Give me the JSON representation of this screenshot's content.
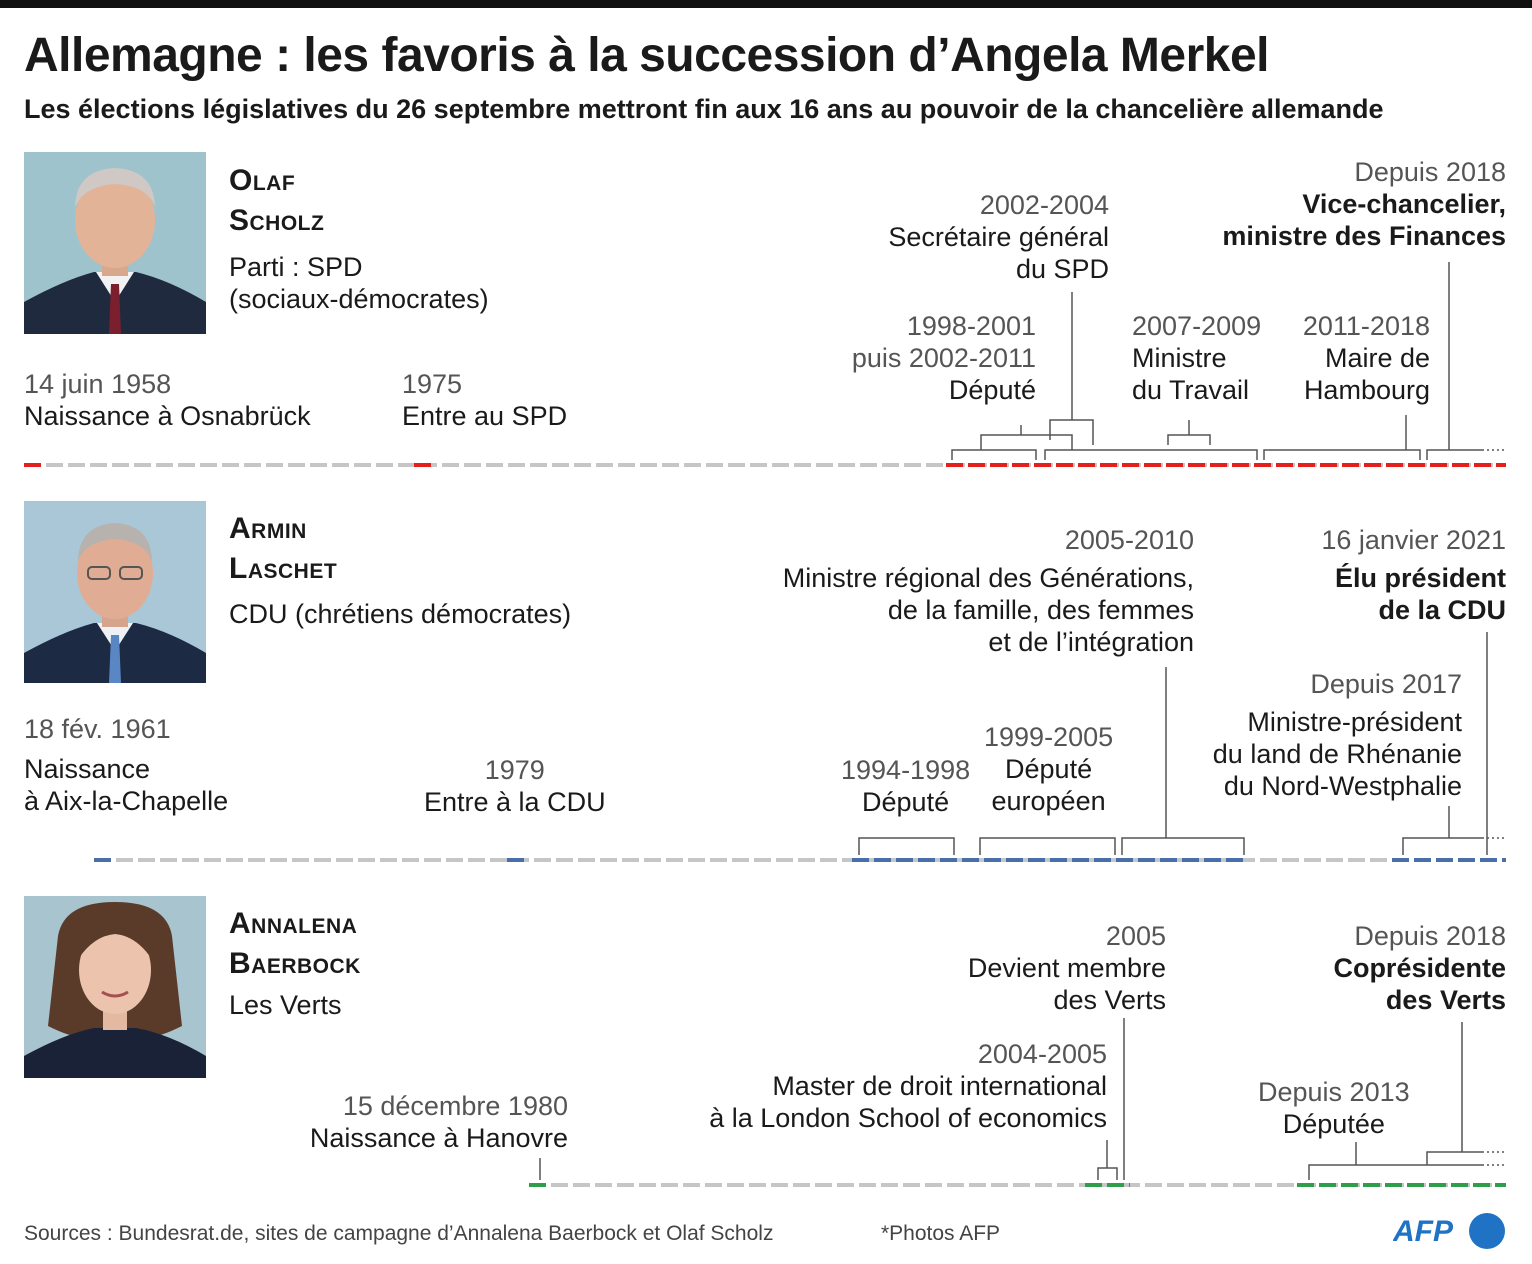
{
  "title": "Allemagne : les favoris à la succession d’Angela Merkel",
  "subtitle": "Les élections législatives du 26 septembre mettront fin aux 16 ans au pouvoir de la chancelière allemande",
  "colors": {
    "scholz": "#e3201b",
    "laschet": "#4a6fa8",
    "baerbock": "#2e9e4a",
    "base": "#c6c6c6"
  },
  "scholz": {
    "first": "Olaf",
    "last": "Scholz",
    "party1": "Parti : SPD",
    "party2": "(sociaux-démocrates)",
    "e1": {
      "y": "14 juin 1958",
      "t": "Naissance à Osnabrück"
    },
    "e2": {
      "y": "1975",
      "t": "Entre au SPD"
    },
    "e3": {
      "y1": "1998-2001",
      "y2": "puis 2002-2011",
      "t": "Député"
    },
    "e4": {
      "y": "2002-2004",
      "t1": "Secrétaire général",
      "t2": "du SPD"
    },
    "e5": {
      "y": "2007-2009",
      "t1": "Ministre",
      "t2": "du Travail"
    },
    "e6": {
      "y": "2011-2018",
      "t1": "Maire de",
      "t2": "Hambourg"
    },
    "e7": {
      "y": "Depuis 2018",
      "t1": "Vice-chancelier,",
      "t2": "ministre des Finances"
    }
  },
  "laschet": {
    "first": "Armin",
    "last": "Laschet",
    "party": "CDU (chrétiens démocrates)",
    "e1": {
      "y": "18 fév. 1961",
      "t1": "Naissance",
      "t2": "à Aix-la-Chapelle"
    },
    "e2": {
      "y": "1979",
      "t": "Entre à la CDU"
    },
    "e3": {
      "y": "1994-1998",
      "t": "Député"
    },
    "e4": {
      "y": "1999-2005",
      "t1": "Député",
      "t2": "européen"
    },
    "e5": {
      "y": "2005-2010",
      "t1": "Ministre régional des Générations,",
      "t2": "de la famille, des femmes",
      "t3": "et de l’intégration"
    },
    "e6": {
      "y": "Depuis 2017",
      "t1": "Ministre-président",
      "t2": "du land de Rhénanie",
      "t3": "du Nord-Westphalie"
    },
    "e7": {
      "y": "16 janvier 2021",
      "t1": "Élu président",
      "t2": "de la CDU"
    }
  },
  "baerbock": {
    "first": "Annalena",
    "last": "Baerbock",
    "party": "Les Verts",
    "e1": {
      "y": "15 décembre 1980",
      "t": "Naissance à Hanovre"
    },
    "e2": {
      "y": "2004-2005",
      "t1": "Master de droit international",
      "t2": "à la London School of economics"
    },
    "e3": {
      "y": "2005",
      "t1": "Devient membre",
      "t2": "des Verts"
    },
    "e4": {
      "y": "Depuis 2013",
      "t": "Députée"
    },
    "e5": {
      "y": "Depuis 2018",
      "t1": "Coprésidente",
      "t2": "des Verts"
    }
  },
  "footer": {
    "sources": "Sources : Bundesrat.de, sites de campagne d’Annalena Baerbock et Olaf Scholz",
    "photos": "*Photos AFP",
    "logo": "AFP"
  }
}
